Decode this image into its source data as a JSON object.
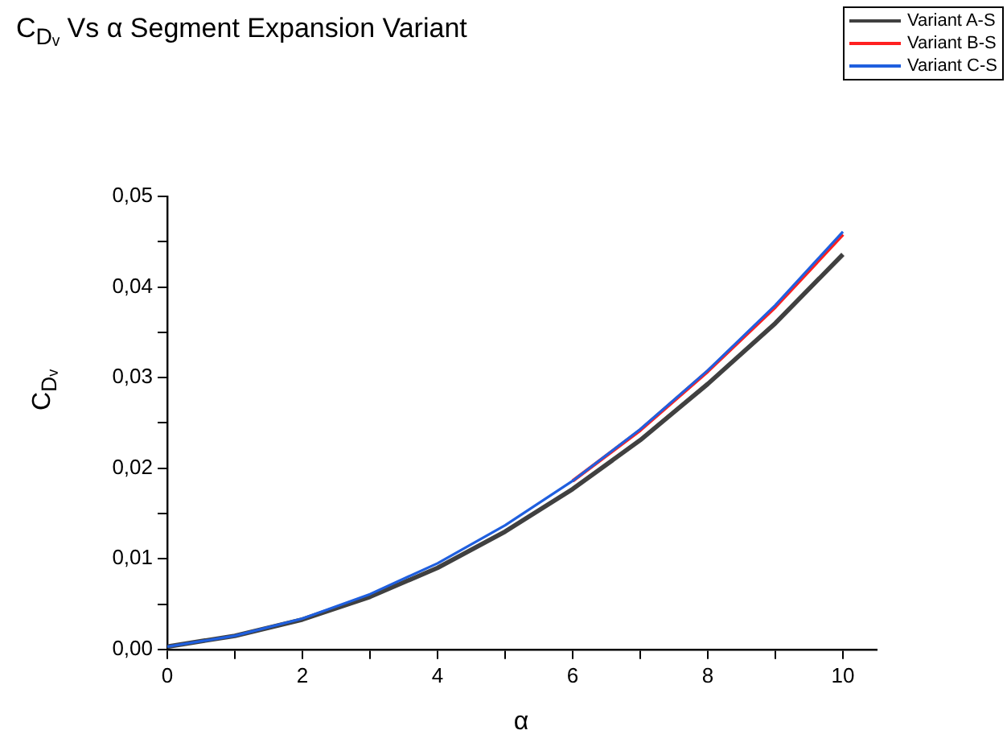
{
  "chart_data": {
    "type": "line",
    "title": "C$_{Dᵥ}$ Vs α Segment Expansion Variant",
    "xlabel": "α",
    "ylabel": "C$_{Dᵥ}$",
    "x": [
      0,
      1,
      2,
      3,
      4,
      5,
      6,
      7,
      8,
      9,
      10
    ],
    "series": [
      {
        "name": "Variant A-S",
        "color": "#404040",
        "values": [
          0.0003,
          0.0015,
          0.0033,
          0.0058,
          0.009,
          0.013,
          0.0177,
          0.0231,
          0.0293,
          0.036,
          0.0436
        ]
      },
      {
        "name": "Variant B-S",
        "color": "#ff2020",
        "values": [
          null,
          null,
          null,
          null,
          null,
          null,
          0.0186,
          0.0242,
          0.0307,
          0.0378,
          0.0458
        ]
      },
      {
        "name": "Variant C-S",
        "color": "#1f5fdf",
        "values": [
          0.0003,
          0.0015,
          0.0034,
          0.0061,
          0.0095,
          0.0137,
          0.0186,
          0.0243,
          0.0308,
          0.038,
          0.0461
        ]
      }
    ],
    "xlim": [
      0,
      10.5
    ],
    "xticks": [
      0,
      {
        "value": 1,
        "label": null
      },
      2,
      {
        "value": 3,
        "label": null
      },
      4,
      {
        "value": 5,
        "label": null
      },
      6,
      {
        "value": 7,
        "label": null
      },
      8,
      {
        "value": 9,
        "label": null
      },
      10
    ],
    "ylim": [
      0,
      0.05
    ],
    "yticks": [
      {
        "value": 0,
        "label": "0,00"
      },
      {
        "value": 0.005,
        "label": null
      },
      {
        "value": 0.01,
        "label": "0,01"
      },
      {
        "value": 0.015,
        "label": null
      },
      {
        "value": 0.02,
        "label": "0,02"
      },
      {
        "value": 0.025,
        "label": null
      },
      {
        "value": 0.03,
        "label": "0,03"
      },
      {
        "value": 0.035,
        "label": null
      },
      {
        "value": 0.04,
        "label": "0,04"
      },
      {
        "value": 0.045,
        "label": null
      },
      {
        "value": 0.05,
        "label": "0,05"
      }
    ],
    "grid": false,
    "legend": "top right",
    "marker": "none",
    "line_style": "solid"
  }
}
